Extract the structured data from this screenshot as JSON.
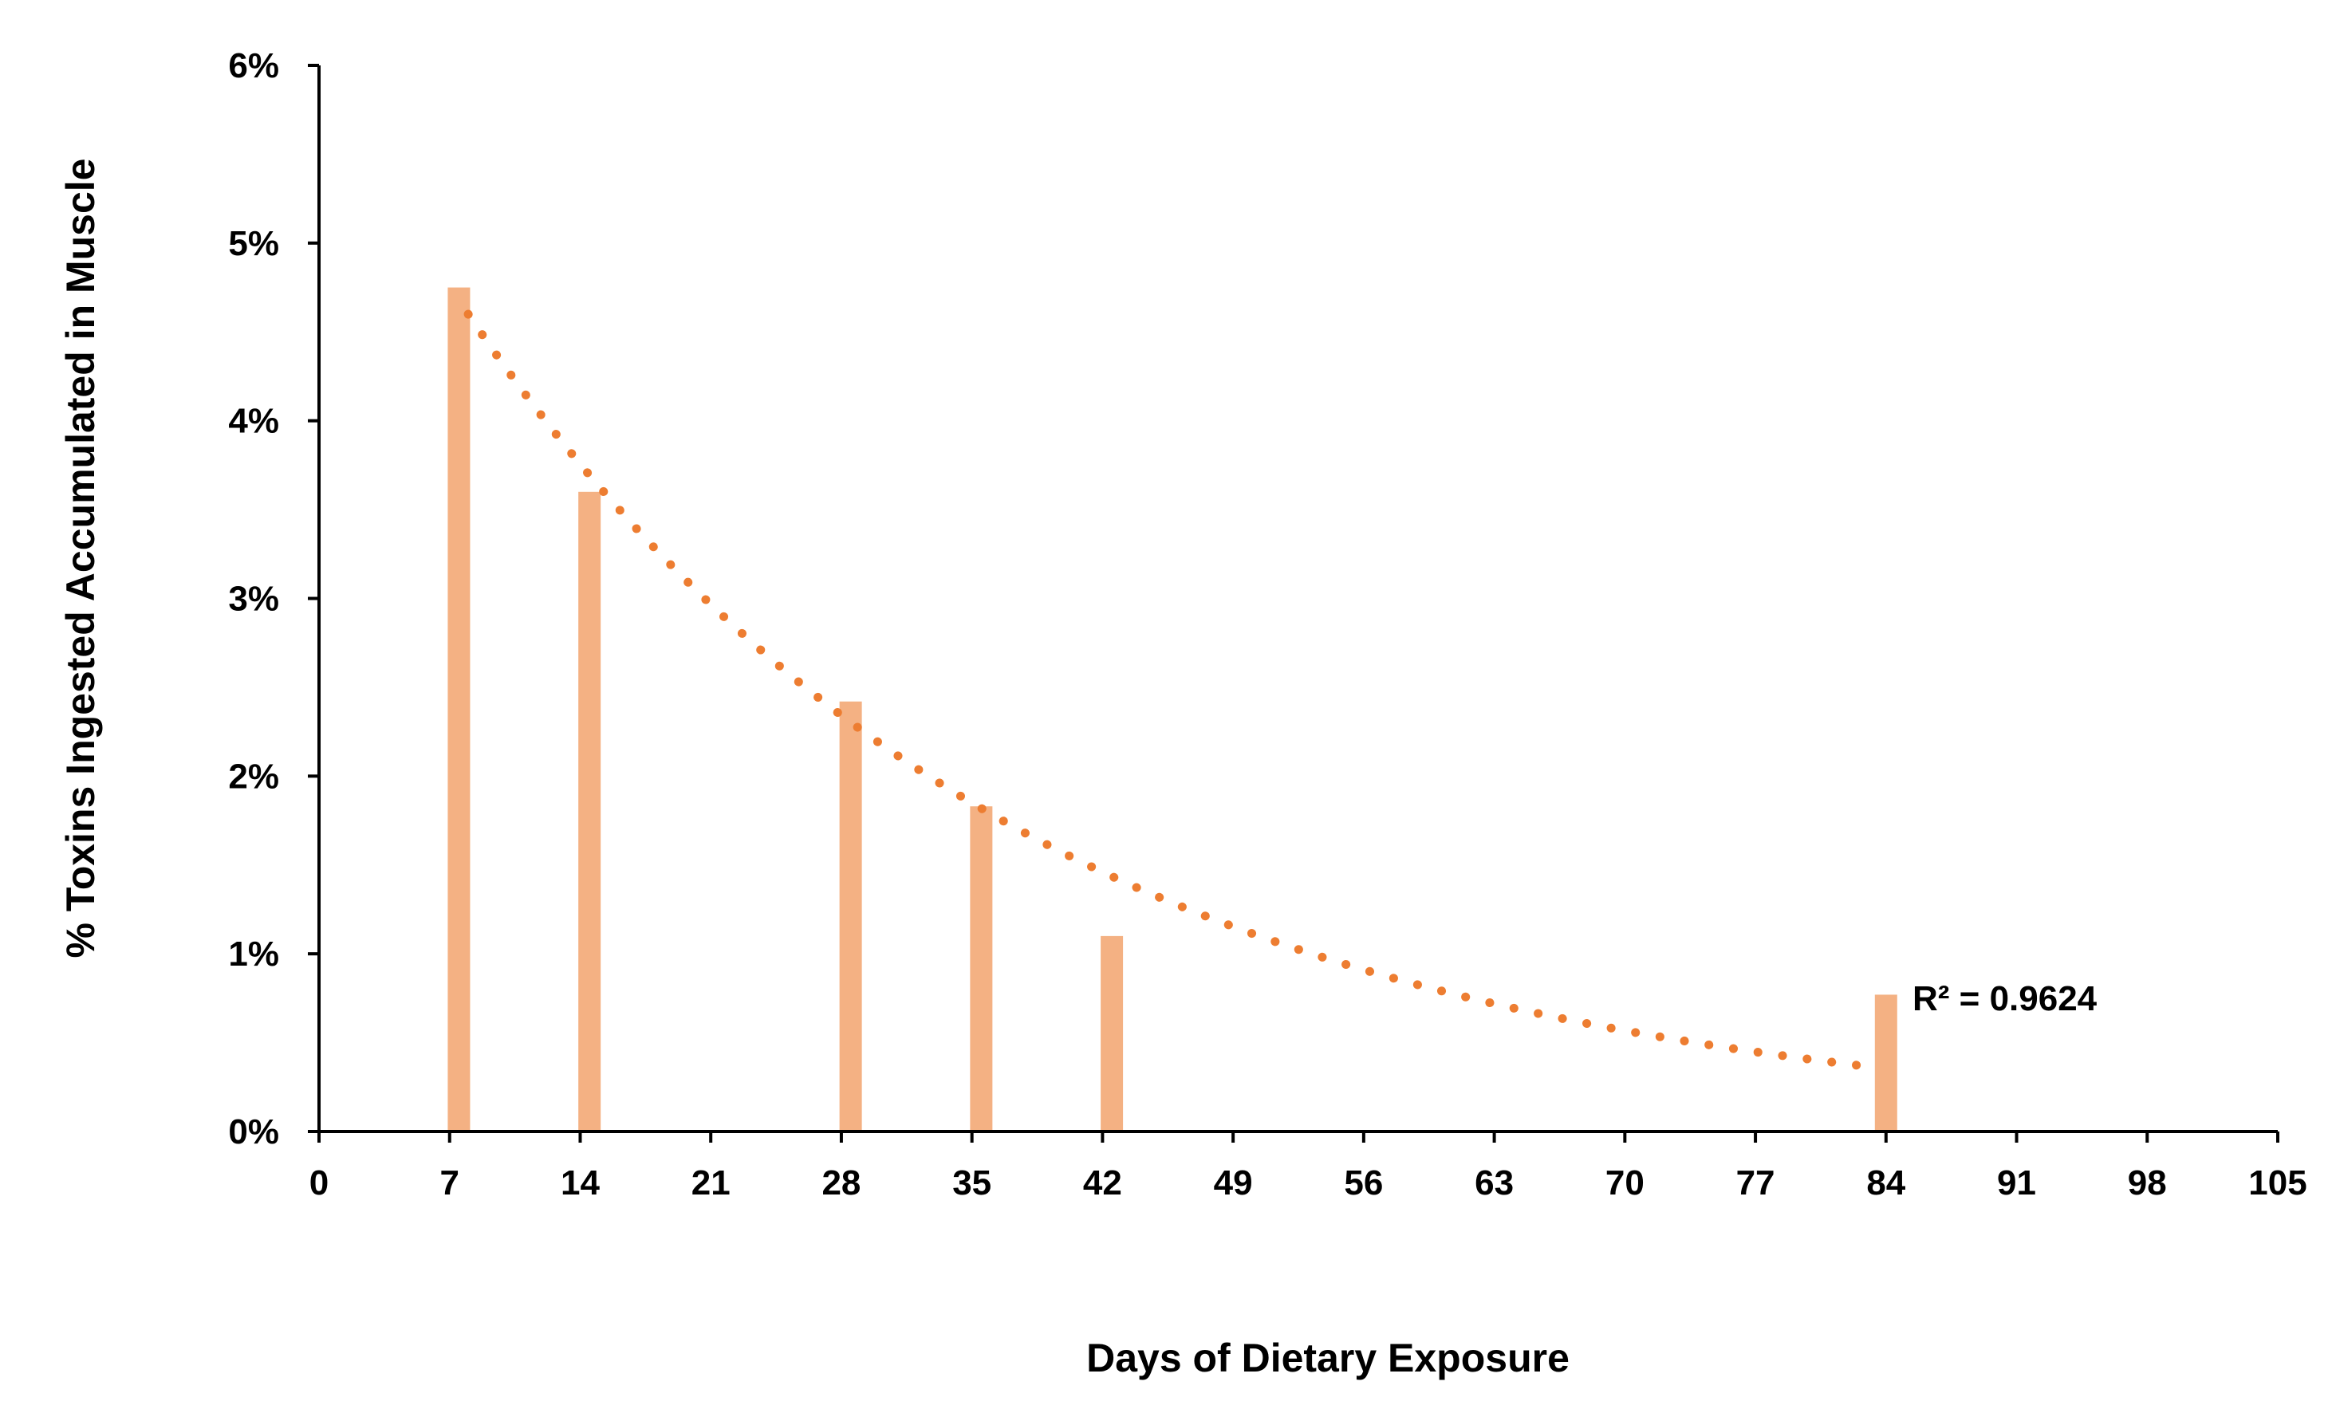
{
  "chart_data": {
    "type": "bar",
    "title": "",
    "xlabel": "Days of Dietary Exposure",
    "ylabel": "% Toxins Ingested Accumulated in Muscle",
    "xlim": [
      0,
      105
    ],
    "ylim": [
      0,
      6
    ],
    "x_ticks": [
      "0",
      "7",
      "14",
      "21",
      "28",
      "35",
      "42",
      "49",
      "56",
      "63",
      "70",
      "77",
      "84",
      "91",
      "98",
      "105"
    ],
    "y_ticks": [
      "0%",
      "1%",
      "2%",
      "3%",
      "4%",
      "5%",
      "6%"
    ],
    "grid": false,
    "legend": "none",
    "bar_color": "#F4B183",
    "trendline_color": "#ED7D31",
    "series": [
      {
        "type": "bar",
        "x": [
          7.5,
          14.5,
          28.5,
          35.5,
          42.5,
          84.0
        ],
        "values": [
          4.75,
          3.6,
          2.42,
          1.83,
          1.1,
          0.77
        ]
      },
      {
        "type": "trendline",
        "style": "dotted",
        "x_range": [
          8,
          83.5
        ],
        "fit": "exponential",
        "points": [
          [
            8,
            4.6
          ],
          [
            83.5,
            0.36
          ]
        ],
        "r_squared_label": "R² = 0.9624"
      }
    ]
  }
}
